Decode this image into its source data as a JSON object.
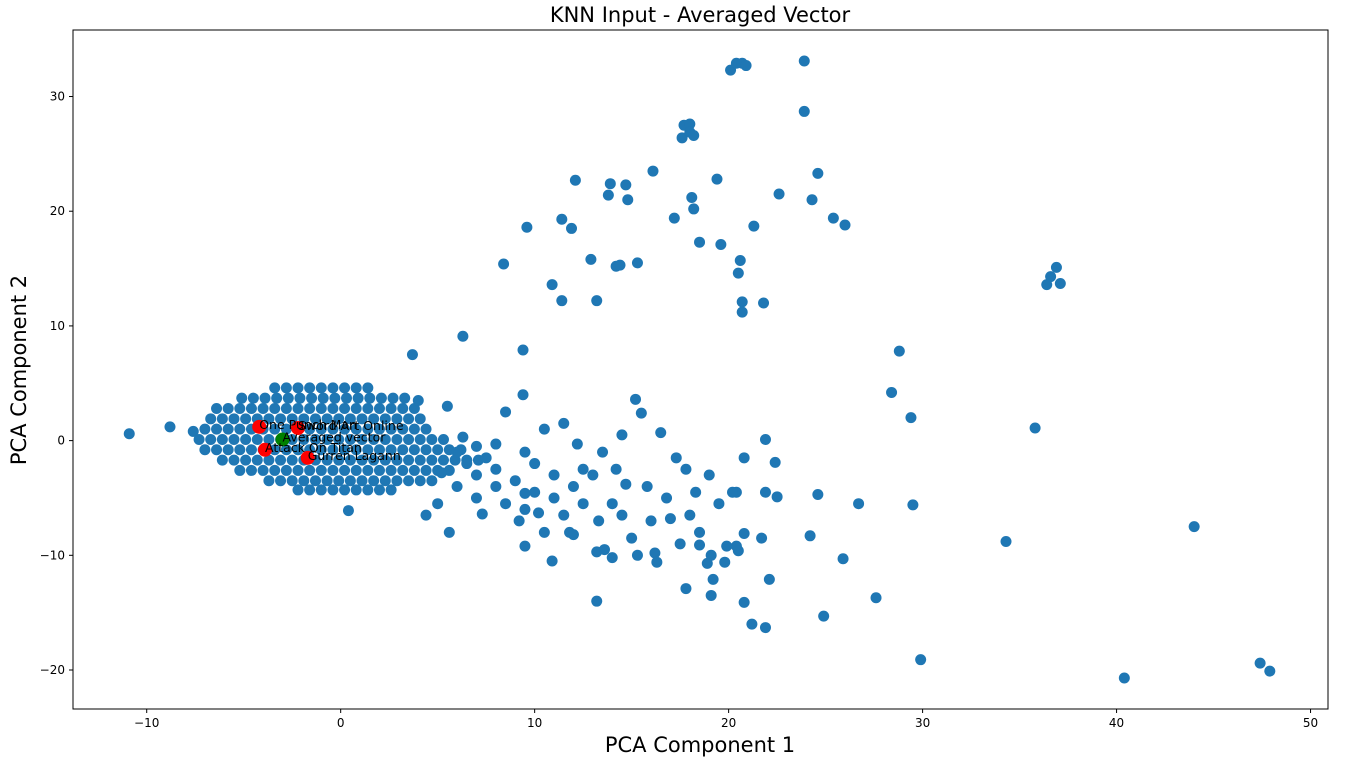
{
  "chart_data": {
    "type": "scatter",
    "title": "KNN Input - Averaged Vector",
    "x_label": "PCA Component 1",
    "y_label": "PCA Component 2",
    "xlim": [
      -13.8,
      50.9
    ],
    "ylim": [
      -23.4,
      35.8
    ],
    "xticks": [
      {
        "value": -10,
        "label": "−10"
      },
      0,
      10,
      20,
      30,
      40,
      50
    ],
    "yticks": [
      {
        "value": -20,
        "label": "−20"
      },
      {
        "value": -10,
        "label": "−10"
      },
      0,
      10,
      20,
      30
    ],
    "grid": false,
    "series": [
      {
        "color": "#1f77b4",
        "x": [
          -3.4,
          -2.8,
          -2.2,
          -1.6,
          -1.0,
          -0.4,
          0.2,
          0.8,
          1.4,
          -5.1,
          -4.5,
          -3.9,
          -3.3,
          -2.7,
          -2.1,
          -1.5,
          -0.9,
          -0.3,
          0.3,
          0.9,
          1.5,
          2.1,
          2.7,
          3.3,
          -6.4,
          -5.8,
          -5.2,
          -4.6,
          -4.0,
          -3.4,
          -2.8,
          -2.2,
          -1.6,
          -1.0,
          -0.4,
          0.2,
          0.8,
          1.4,
          2.0,
          2.6,
          3.2,
          3.8,
          -6.7,
          -6.1,
          -5.5,
          -4.9,
          -4.3,
          -3.7,
          -3.1,
          -2.5,
          -1.9,
          -1.3,
          -0.7,
          -0.1,
          0.5,
          1.1,
          1.7,
          2.3,
          2.9,
          3.5,
          4.1,
          -7.0,
          -6.4,
          -5.8,
          -5.2,
          -4.6,
          -4.0,
          -3.4,
          -2.8,
          -2.2,
          -1.6,
          -1.0,
          -0.4,
          0.2,
          0.8,
          1.4,
          2.0,
          2.6,
          3.2,
          3.8,
          4.4,
          -7.3,
          -6.7,
          -6.1,
          -5.5,
          -4.9,
          -4.3,
          -3.7,
          -3.1,
          -2.5,
          -1.9,
          -1.3,
          -0.7,
          -0.1,
          0.5,
          1.1,
          1.7,
          2.3,
          2.9,
          3.5,
          4.1,
          4.7,
          5.3,
          -7.0,
          -6.4,
          -5.8,
          -5.2,
          -4.6,
          -4.0,
          -3.4,
          -2.8,
          -2.2,
          -1.6,
          -1.0,
          -0.4,
          0.2,
          0.8,
          1.4,
          2.0,
          2.6,
          3.2,
          3.8,
          4.4,
          5.0,
          5.6,
          6.2,
          -6.1,
          -5.5,
          -4.9,
          -4.3,
          -3.7,
          -3.1,
          -2.5,
          -1.9,
          -1.3,
          -0.7,
          -0.1,
          0.5,
          1.1,
          1.7,
          2.3,
          2.9,
          3.5,
          4.1,
          4.7,
          5.3,
          5.9,
          6.5,
          7.1,
          -5.2,
          -4.6,
          -4.0,
          -3.4,
          -2.8,
          -2.2,
          -1.6,
          -1.0,
          -0.4,
          0.2,
          0.8,
          1.4,
          2.0,
          2.6,
          3.2,
          3.8,
          4.4,
          5.0,
          5.6,
          -3.7,
          -3.1,
          -2.5,
          -1.9,
          -1.3,
          -0.7,
          -0.1,
          0.5,
          1.1,
          1.7,
          2.3,
          2.9,
          3.5,
          4.1,
          4.7,
          -2.2,
          -1.6,
          -1.0,
          -0.4,
          0.2,
          0.8,
          1.4,
          2.0,
          2.6,
          -10.9,
          -8.8,
          -7.6,
          3.7,
          6.3,
          9.4,
          9.4,
          0.4,
          4.4,
          5.6,
          8.4,
          9.6,
          10.9,
          11.4,
          11.9,
          11.4,
          12.1,
          12.9,
          13.2,
          13.9,
          13.8,
          14.2,
          14.4,
          14.7,
          14.8,
          15.3,
          16.1,
          17.2,
          17.6,
          17.7,
          18.0,
          18.0,
          18.2,
          18.1,
          18.2,
          18.5,
          19.4,
          19.6,
          20.1,
          20.4,
          20.7,
          20.9,
          20.5,
          20.6,
          20.7,
          20.7,
          21.3,
          21.8,
          22.6,
          23.9,
          23.9,
          24.3,
          24.6,
          25.4,
          26.0,
          36.9,
          36.6,
          36.4,
          37.1,
          28.8,
          28.4,
          29.4,
          35.8,
          29.5,
          26.7,
          44.0,
          34.3,
          25.9,
          27.6,
          24.9,
          29.9,
          40.4,
          47.4,
          47.9,
          21.9,
          20.8,
          22.4,
          20.4,
          21.9,
          22.5,
          24.6,
          24.2,
          20.8,
          21.7,
          20.4,
          20.5,
          19.8,
          19.1,
          18.5,
          19.2,
          19.1,
          20.8,
          22.1,
          21.2,
          21.9,
          17.8,
          13.2,
          10.9,
          9.5,
          9.5,
          10.2,
          6.0,
          6.5,
          7.0,
          7.5,
          8.0,
          8.0,
          7.0,
          6.0,
          7.0,
          8.0,
          8.5,
          9.0,
          9.5,
          10.0,
          10.0,
          10.5,
          11.0,
          11.5,
          11.0,
          11.5,
          11.8,
          12.0,
          12.5,
          12.2,
          12.5,
          13.0,
          13.3,
          13.2,
          13.6,
          14.0,
          14.2,
          14.5,
          14.7,
          14.5,
          15.0,
          15.2,
          15.5,
          15.8,
          16.0,
          16.5,
          16.2,
          16.8,
          17.0,
          17.3,
          17.5,
          17.8,
          18.0,
          18.3,
          19.0,
          19.5,
          18.5,
          15.3,
          16.3,
          14.0,
          12.0,
          9.2,
          10.5,
          9.5,
          8.5,
          5.5,
          6.3,
          5.2,
          7.3,
          13.5,
          20.2,
          19.9,
          18.9,
          5.0,
          4.0
        ],
        "y": [
          4.6,
          4.6,
          4.6,
          4.6,
          4.6,
          4.6,
          4.6,
          4.6,
          4.6,
          3.7,
          3.7,
          3.7,
          3.7,
          3.7,
          3.7,
          3.7,
          3.7,
          3.7,
          3.7,
          3.7,
          3.7,
          3.7,
          3.7,
          3.7,
          2.8,
          2.8,
          2.8,
          2.8,
          2.8,
          2.8,
          2.8,
          2.8,
          2.8,
          2.8,
          2.8,
          2.8,
          2.8,
          2.8,
          2.8,
          2.8,
          2.8,
          2.8,
          1.9,
          1.9,
          1.9,
          1.9,
          1.9,
          1.9,
          1.9,
          1.9,
          1.9,
          1.9,
          1.9,
          1.9,
          1.9,
          1.9,
          1.9,
          1.9,
          1.9,
          1.9,
          1.9,
          1.0,
          1.0,
          1.0,
          1.0,
          1.0,
          1.0,
          1.0,
          1.0,
          1.0,
          1.0,
          1.0,
          1.0,
          1.0,
          1.0,
          1.0,
          1.0,
          1.0,
          1.0,
          1.0,
          1.0,
          0.1,
          0.1,
          0.1,
          0.1,
          0.1,
          0.1,
          0.1,
          0.1,
          0.1,
          0.1,
          0.1,
          0.1,
          0.1,
          0.1,
          0.1,
          0.1,
          0.1,
          0.1,
          0.1,
          0.1,
          0.1,
          0.1,
          -0.8,
          -0.8,
          -0.8,
          -0.8,
          -0.8,
          -0.8,
          -0.8,
          -0.8,
          -0.8,
          -0.8,
          -0.8,
          -0.8,
          -0.8,
          -0.8,
          -0.8,
          -0.8,
          -0.8,
          -0.8,
          -0.8,
          -0.8,
          -0.8,
          -0.8,
          -0.8,
          -1.7,
          -1.7,
          -1.7,
          -1.7,
          -1.7,
          -1.7,
          -1.7,
          -1.7,
          -1.7,
          -1.7,
          -1.7,
          -1.7,
          -1.7,
          -1.7,
          -1.7,
          -1.7,
          -1.7,
          -1.7,
          -1.7,
          -1.7,
          -1.7,
          -1.7,
          -1.7,
          -2.6,
          -2.6,
          -2.6,
          -2.6,
          -2.6,
          -2.6,
          -2.6,
          -2.6,
          -2.6,
          -2.6,
          -2.6,
          -2.6,
          -2.6,
          -2.6,
          -2.6,
          -2.6,
          -2.6,
          -2.6,
          -2.6,
          -3.5,
          -3.5,
          -3.5,
          -3.5,
          -3.5,
          -3.5,
          -3.5,
          -3.5,
          -3.5,
          -3.5,
          -3.5,
          -3.5,
          -3.5,
          -3.5,
          -3.5,
          -4.3,
          -4.3,
          -4.3,
          -4.3,
          -4.3,
          -4.3,
          -4.3,
          -4.3,
          -4.3,
          0.6,
          1.2,
          0.8,
          7.5,
          9.1,
          7.9,
          4.0,
          -6.1,
          -6.5,
          -8.0,
          15.4,
          18.6,
          13.6,
          19.3,
          18.5,
          12.2,
          22.7,
          15.8,
          12.2,
          22.4,
          21.4,
          15.2,
          15.3,
          22.3,
          21.0,
          15.5,
          23.5,
          19.4,
          26.4,
          27.5,
          27.6,
          26.9,
          26.6,
          21.2,
          20.2,
          17.3,
          22.8,
          17.1,
          32.3,
          32.9,
          32.9,
          32.7,
          14.6,
          15.7,
          12.1,
          11.2,
          18.7,
          12.0,
          21.5,
          33.1,
          28.7,
          21.0,
          23.3,
          19.4,
          18.8,
          15.1,
          14.3,
          13.6,
          13.7,
          7.8,
          4.2,
          2.0,
          1.1,
          -5.6,
          -5.5,
          -7.5,
          -8.8,
          -10.3,
          -13.7,
          -15.3,
          -19.1,
          -20.7,
          -19.4,
          -20.1,
          0.1,
          -1.5,
          -1.9,
          -4.5,
          -4.5,
          -4.9,
          -4.7,
          -8.3,
          -8.1,
          -8.5,
          -9.2,
          -9.6,
          -10.6,
          -10.0,
          -9.1,
          -12.1,
          -13.5,
          -14.1,
          -12.1,
          -16.0,
          -16.3,
          -12.9,
          -14.0,
          -10.5,
          -9.2,
          -4.6,
          -6.3,
          -1.0,
          -2.0,
          -0.5,
          -1.5,
          -2.5,
          -0.3,
          -3.0,
          -4.0,
          -5.0,
          -4.0,
          -5.5,
          -3.5,
          -6.0,
          -2.0,
          -4.5,
          1.0,
          -3.0,
          1.5,
          -5.0,
          -6.5,
          -8.0,
          -4.0,
          -5.5,
          -0.3,
          -2.5,
          -3.0,
          -7.0,
          -9.7,
          -9.5,
          -5.5,
          -2.5,
          0.5,
          -3.8,
          -6.5,
          -8.5,
          3.6,
          2.4,
          -4.0,
          -7.0,
          0.7,
          -9.8,
          -5.0,
          -6.8,
          -1.5,
          -9.0,
          -2.5,
          -6.5,
          -4.5,
          -3.0,
          -5.5,
          -8.0,
          -10.0,
          -10.6,
          -10.2,
          -8.2,
          -7.0,
          -8.0,
          -1.0,
          2.5,
          3.0,
          0.3,
          -2.8,
          -6.4,
          -1.0,
          -4.5,
          -9.2,
          -10.7,
          -5.5,
          3.5
        ]
      },
      {
        "color": "#ff0000",
        "x": [
          -4.2,
          -2.2,
          -3.9,
          -1.7
        ],
        "y": [
          1.2,
          1.1,
          -0.8,
          -1.5
        ],
        "labels": [
          "One Punch Man",
          "Sword Art Online",
          "Attack On Titan",
          "Gurren Lagann"
        ]
      },
      {
        "color": "#008000",
        "x": [
          -3.0
        ],
        "y": [
          0.1
        ],
        "labels": [
          "Averaged vector"
        ]
      }
    ]
  }
}
